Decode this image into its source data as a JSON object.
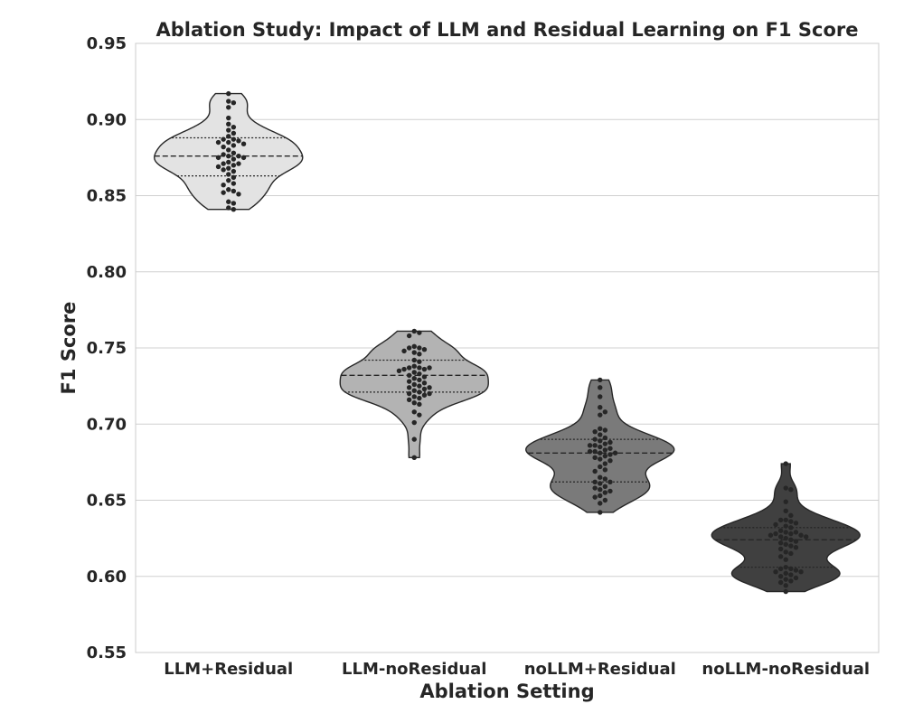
{
  "chart_data": {
    "type": "violin",
    "title": "Ablation Study: Impact of LLM and Residual Learning on F1 Score",
    "xlabel": "Ablation Setting",
    "ylabel": "F1 Score",
    "ylim": [
      0.55,
      0.95
    ],
    "yticks": [
      "0.55",
      "0.60",
      "0.65",
      "0.70",
      "0.75",
      "0.80",
      "0.85",
      "0.90",
      "0.95"
    ],
    "grid": true,
    "categories": [
      "LLM+Residual",
      "LLM-noResidual",
      "noLLM+Residual",
      "noLLM-noResidual"
    ],
    "series": [
      {
        "name": "LLM+Residual",
        "fill": "#e3e3e3",
        "min": 0.841,
        "q1": 0.863,
        "median": 0.876,
        "q3": 0.888,
        "max": 0.917,
        "points": [
          0.917,
          0.912,
          0.911,
          0.908,
          0.901,
          0.897,
          0.895,
          0.893,
          0.891,
          0.889,
          0.887,
          0.887,
          0.886,
          0.885,
          0.885,
          0.884,
          0.883,
          0.882,
          0.88,
          0.878,
          0.877,
          0.876,
          0.876,
          0.875,
          0.875,
          0.874,
          0.872,
          0.871,
          0.871,
          0.87,
          0.869,
          0.868,
          0.867,
          0.866,
          0.864,
          0.862,
          0.86,
          0.858,
          0.857,
          0.854,
          0.853,
          0.852,
          0.851,
          0.846,
          0.845,
          0.842,
          0.841
        ]
      },
      {
        "name": "LLM-noResidual",
        "fill": "#b3b3b3",
        "min": 0.678,
        "q1": 0.721,
        "median": 0.732,
        "q3": 0.742,
        "max": 0.761,
        "points": [
          0.761,
          0.76,
          0.758,
          0.751,
          0.75,
          0.75,
          0.749,
          0.748,
          0.747,
          0.746,
          0.742,
          0.741,
          0.738,
          0.737,
          0.737,
          0.737,
          0.736,
          0.736,
          0.735,
          0.734,
          0.733,
          0.732,
          0.731,
          0.73,
          0.729,
          0.728,
          0.727,
          0.726,
          0.725,
          0.724,
          0.724,
          0.723,
          0.722,
          0.721,
          0.72,
          0.72,
          0.719,
          0.718,
          0.717,
          0.716,
          0.714,
          0.713,
          0.708,
          0.706,
          0.701,
          0.69,
          0.678
        ]
      },
      {
        "name": "noLLM+Residual",
        "fill": "#7a7a7a",
        "min": 0.642,
        "q1": 0.662,
        "median": 0.681,
        "q3": 0.69,
        "max": 0.729,
        "points": [
          0.729,
          0.724,
          0.718,
          0.711,
          0.708,
          0.706,
          0.697,
          0.696,
          0.695,
          0.693,
          0.691,
          0.69,
          0.689,
          0.688,
          0.687,
          0.686,
          0.686,
          0.685,
          0.684,
          0.683,
          0.682,
          0.682,
          0.681,
          0.681,
          0.68,
          0.679,
          0.678,
          0.677,
          0.676,
          0.674,
          0.672,
          0.67,
          0.669,
          0.665,
          0.664,
          0.662,
          0.662,
          0.661,
          0.659,
          0.658,
          0.657,
          0.656,
          0.655,
          0.653,
          0.652,
          0.65,
          0.648,
          0.642
        ]
      },
      {
        "name": "noLLM-noResidual",
        "fill": "#404040",
        "min": 0.59,
        "q1": 0.606,
        "median": 0.624,
        "q3": 0.632,
        "max": 0.674,
        "points": [
          0.674,
          0.658,
          0.657,
          0.649,
          0.643,
          0.64,
          0.637,
          0.637,
          0.636,
          0.635,
          0.634,
          0.633,
          0.632,
          0.63,
          0.629,
          0.629,
          0.628,
          0.628,
          0.627,
          0.627,
          0.626,
          0.626,
          0.625,
          0.624,
          0.623,
          0.622,
          0.621,
          0.62,
          0.619,
          0.618,
          0.616,
          0.615,
          0.613,
          0.611,
          0.606,
          0.605,
          0.605,
          0.604,
          0.603,
          0.603,
          0.602,
          0.601,
          0.6,
          0.599,
          0.598,
          0.597,
          0.596,
          0.594,
          0.59
        ]
      }
    ]
  }
}
